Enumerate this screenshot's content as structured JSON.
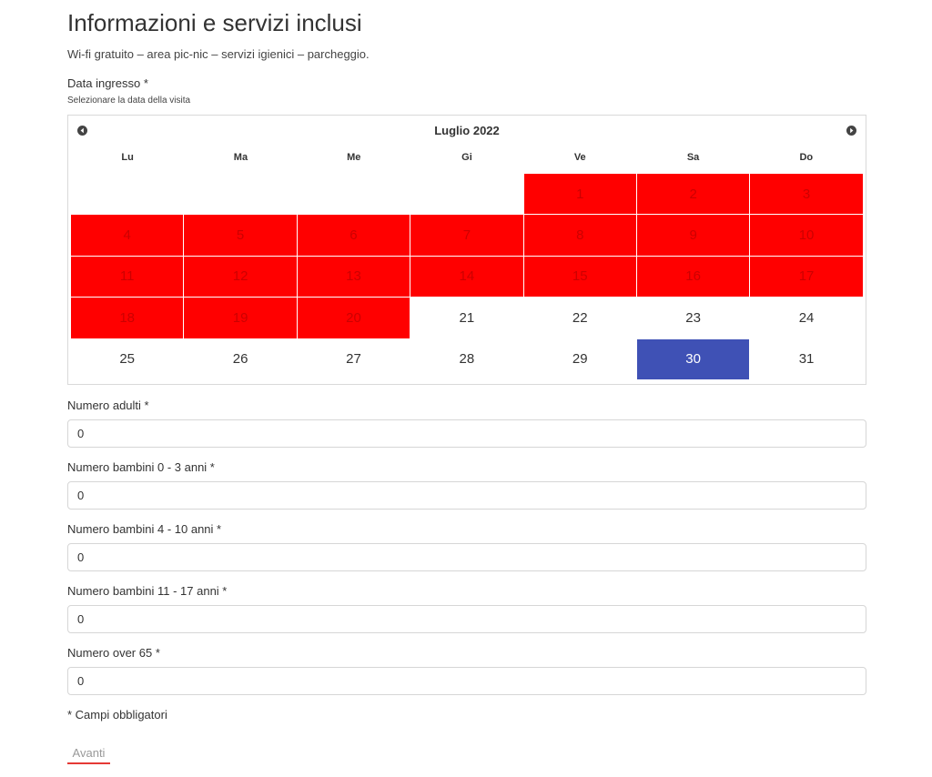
{
  "page": {
    "title": "Informazioni e servizi inclusi",
    "subtitle": "Wi-fi gratuito – area pic-nic – servizi igienici – parcheggio."
  },
  "date_field": {
    "label": "Data ingresso *",
    "hint": "Selezionare la data della visita"
  },
  "calendar": {
    "month_label": "Luglio 2022",
    "weekdays": [
      "Lu",
      "Ma",
      "Me",
      "Gi",
      "Ve",
      "Sa",
      "Do"
    ],
    "leading_blanks": 4,
    "days": [
      "1",
      "2",
      "3",
      "4",
      "5",
      "6",
      "7",
      "8",
      "9",
      "10",
      "11",
      "12",
      "13",
      "14",
      "15",
      "16",
      "17",
      "18",
      "19",
      "20",
      "21",
      "22",
      "23",
      "24",
      "25",
      "26",
      "27",
      "28",
      "29",
      "30",
      "31"
    ],
    "unavailable_days": [
      1,
      2,
      3,
      4,
      5,
      6,
      7,
      8,
      9,
      10,
      11,
      12,
      13,
      14,
      15,
      16,
      17,
      18,
      19,
      20
    ],
    "selected_day": 30,
    "colors": {
      "unavailable": "#ff0000",
      "selected": "#3f51b5"
    }
  },
  "fields": [
    {
      "label": "Numero adulti *",
      "value": "0"
    },
    {
      "label": "Numero bambini 0 - 3 anni *",
      "value": "0"
    },
    {
      "label": "Numero bambini 4 - 10 anni *",
      "value": "0"
    },
    {
      "label": "Numero bambini 11 - 17 anni *",
      "value": "0"
    },
    {
      "label": "Numero over 65 *",
      "value": "0"
    }
  ],
  "note": "* Campi obbligatori",
  "next_button": "Avanti"
}
